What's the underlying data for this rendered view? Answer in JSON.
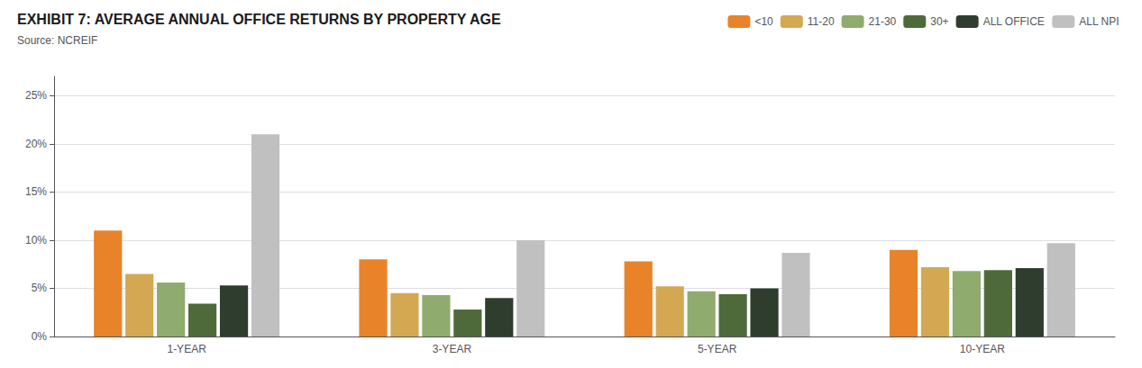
{
  "chart_data": {
    "type": "bar",
    "title": "EXHIBIT 7: AVERAGE ANNUAL OFFICE RETURNS BY PROPERTY AGE",
    "subtitle": "Source: NCREIF",
    "categories": [
      "1-YEAR",
      "3-YEAR",
      "5-YEAR",
      "10-YEAR"
    ],
    "series": [
      {
        "name": "<10",
        "color": "#E8832A",
        "values": [
          11.0,
          8.0,
          7.8,
          9.0
        ]
      },
      {
        "name": "11-20",
        "color": "#D4A853",
        "values": [
          6.5,
          4.5,
          5.2,
          7.2
        ]
      },
      {
        "name": "21-30",
        "color": "#8FAB6E",
        "values": [
          5.6,
          4.3,
          4.7,
          6.8
        ]
      },
      {
        "name": "30+",
        "color": "#4E6A3A",
        "values": [
          3.4,
          2.8,
          4.4,
          6.9
        ]
      },
      {
        "name": "ALL OFFICE",
        "color": "#2E3D2E",
        "values": [
          5.3,
          4.0,
          5.0,
          7.1
        ]
      },
      {
        "name": "ALL NPI",
        "color": "#C0C0C0",
        "values": [
          21.0,
          10.0,
          8.7,
          9.7
        ]
      }
    ],
    "ylim": [
      0,
      27
    ],
    "yticks": [
      {
        "value": 0,
        "label": "0%"
      },
      {
        "value": 5,
        "label": "5%"
      },
      {
        "value": 10,
        "label": "10%"
      },
      {
        "value": 15,
        "label": "15%"
      },
      {
        "value": 20,
        "label": "20%"
      },
      {
        "value": 25,
        "label": "25%"
      }
    ],
    "grid": true,
    "legend": "top"
  }
}
